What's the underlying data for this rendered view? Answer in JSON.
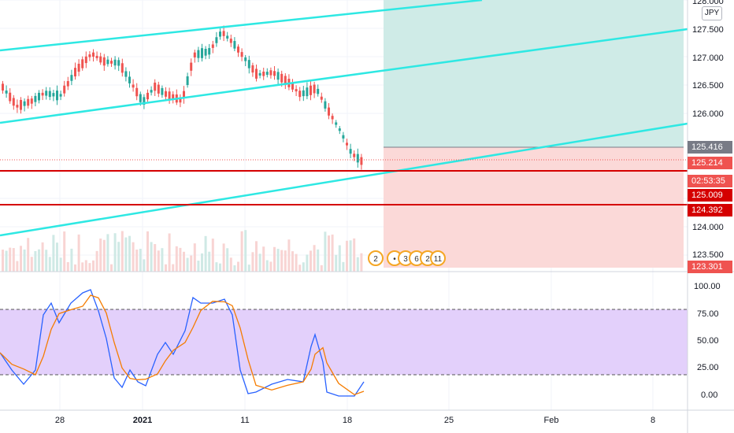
{
  "symbol": {
    "currency_badge": "JPY"
  },
  "price_axis": {
    "ticks": [
      "128.000",
      "127.500",
      "127.000",
      "126.500",
      "126.000",
      "124.000",
      "123.500"
    ],
    "tags": [
      {
        "label": "125.416",
        "color": "#787b86"
      },
      {
        "label": "125.214",
        "color": "#ef5350"
      },
      {
        "label": "02:53:35",
        "color": "#ef5350"
      },
      {
        "label": "125.009",
        "color": "#d50000"
      },
      {
        "label": "124.392",
        "color": "#d50000"
      },
      {
        "label": "123.301",
        "color": "#ef5350"
      }
    ]
  },
  "oscillator_axis": {
    "ticks": [
      "100.00",
      "75.00",
      "50.00",
      "25.00",
      "0.00"
    ]
  },
  "time_axis": {
    "labels": [
      "28",
      "2021",
      "11",
      "18",
      "25",
      "Feb",
      "8"
    ]
  },
  "events": [
    "2",
    "3",
    "6",
    "2",
    "11"
  ],
  "colors": {
    "channel": "#2ee8e3",
    "candle_up": "#26a69a",
    "candle_down": "#ef5350",
    "level_line": "#d50000",
    "target_zone": "#cfebe7",
    "stop_zone": "#fbd9d8",
    "oscillator_band": "#e3d0fb",
    "k_line": "#2962ff",
    "d_line": "#f57c00"
  }
}
